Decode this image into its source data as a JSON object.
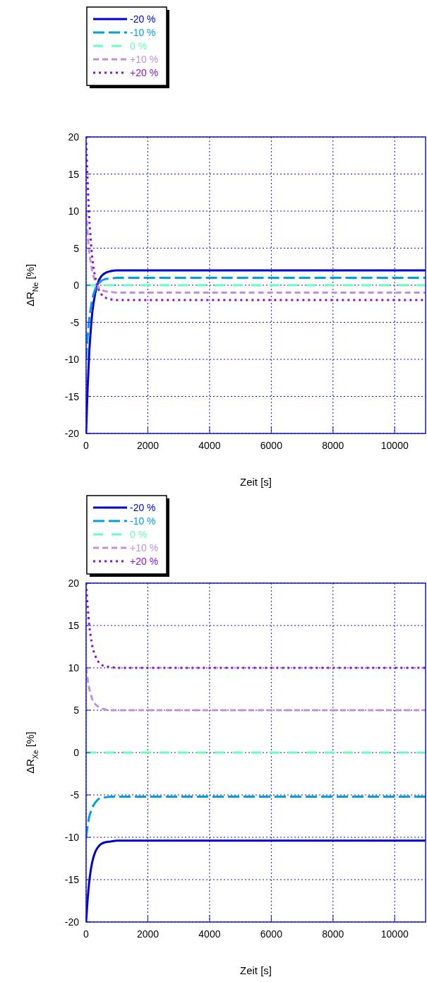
{
  "chart_data": [
    {
      "type": "line",
      "xlabel": "Zeit [s]",
      "ylabel": "ΔR$_{Ne}$ [%]",
      "xlim": [
        0,
        11000
      ],
      "ylim": [
        -20,
        20
      ],
      "xticks": [
        0,
        2000,
        4000,
        6000,
        8000,
        10000
      ],
      "yticks": [
        -20,
        -15,
        -10,
        -5,
        0,
        5,
        10,
        15,
        20
      ],
      "grid": true,
      "legend": "top left",
      "x": [
        0,
        25,
        50,
        100,
        150,
        200,
        300,
        400,
        600,
        800,
        1000,
        11000
      ],
      "series": [
        {
          "name": "-20 %",
          "color": "#0000cc",
          "line_style": "solid",
          "values": [
            -20,
            -16.7,
            -13.8,
            -9.2,
            -6.1,
            -3.7,
            -1.0,
            0.5,
            1.6,
            1.9,
            2,
            2
          ]
        },
        {
          "name": "-10 %",
          "color": "#00a0e0",
          "line_style": "dashed",
          "values": [
            -10,
            -8.4,
            -6.9,
            -4.6,
            -3.1,
            -1.9,
            -0.5,
            0.2,
            0.8,
            0.9,
            1,
            1
          ]
        },
        {
          "name": "0 %",
          "color": "#66ffc0",
          "line_style": "dashed",
          "values": [
            0,
            0,
            0,
            0,
            0,
            0,
            0,
            0,
            0,
            0,
            0,
            0
          ]
        },
        {
          "name": "+10 %",
          "color": "#c090e0",
          "line_style": "dashed",
          "values": [
            10,
            8.4,
            6.9,
            4.6,
            3.1,
            1.9,
            0.5,
            -0.2,
            -0.8,
            -0.9,
            -1,
            -1
          ]
        },
        {
          "name": "+20 %",
          "color": "#9010d0",
          "line_style": "dotted",
          "values": [
            20,
            16.7,
            13.8,
            9.2,
            6.1,
            3.7,
            1.0,
            -0.5,
            -1.6,
            -1.9,
            -2,
            -2
          ]
        }
      ]
    },
    {
      "type": "line",
      "xlabel": "Zeit [s]",
      "ylabel": "ΔR$_{Xe}$ [%]",
      "xlim": [
        0,
        11000
      ],
      "ylim": [
        -20,
        20
      ],
      "xticks": [
        0,
        2000,
        4000,
        6000,
        8000,
        10000
      ],
      "yticks": [
        -20,
        -15,
        -10,
        -5,
        0,
        5,
        10,
        15,
        20
      ],
      "grid": true,
      "legend": "top left",
      "x": [
        0,
        25,
        50,
        100,
        150,
        200,
        300,
        400,
        600,
        800,
        1000,
        11000
      ],
      "series": [
        {
          "name": "-20 %",
          "color": "#0000cc",
          "line_style": "solid",
          "values": [
            -20,
            -18.6,
            -17.3,
            -15.3,
            -13.9,
            -12.9,
            -11.7,
            -11.1,
            -10.6,
            -10.5,
            -10.4,
            -10.4
          ]
        },
        {
          "name": "-10 %",
          "color": "#00a0e0",
          "line_style": "dashed",
          "values": [
            -10,
            -9.3,
            -8.7,
            -7.6,
            -7.0,
            -6.5,
            -5.9,
            -5.5,
            -5.3,
            -5.2,
            -5.2,
            -5.2
          ]
        },
        {
          "name": "0 %",
          "color": "#66ffc0",
          "line_style": "dashed",
          "values": [
            0,
            0,
            0,
            0,
            0,
            0,
            0,
            0,
            0,
            0,
            0,
            0
          ]
        },
        {
          "name": "+10 %",
          "color": "#c090e0",
          "line_style": "dashed",
          "values": [
            10,
            9.3,
            8.6,
            7.6,
            6.9,
            6.3,
            5.7,
            5.4,
            5.1,
            5.0,
            5,
            5
          ]
        },
        {
          "name": "+20 %",
          "color": "#9010d0",
          "line_style": "dotted",
          "values": [
            20,
            18.5,
            17.2,
            15.1,
            13.7,
            12.6,
            11.4,
            10.7,
            10.2,
            10.1,
            10,
            10
          ]
        }
      ]
    }
  ]
}
